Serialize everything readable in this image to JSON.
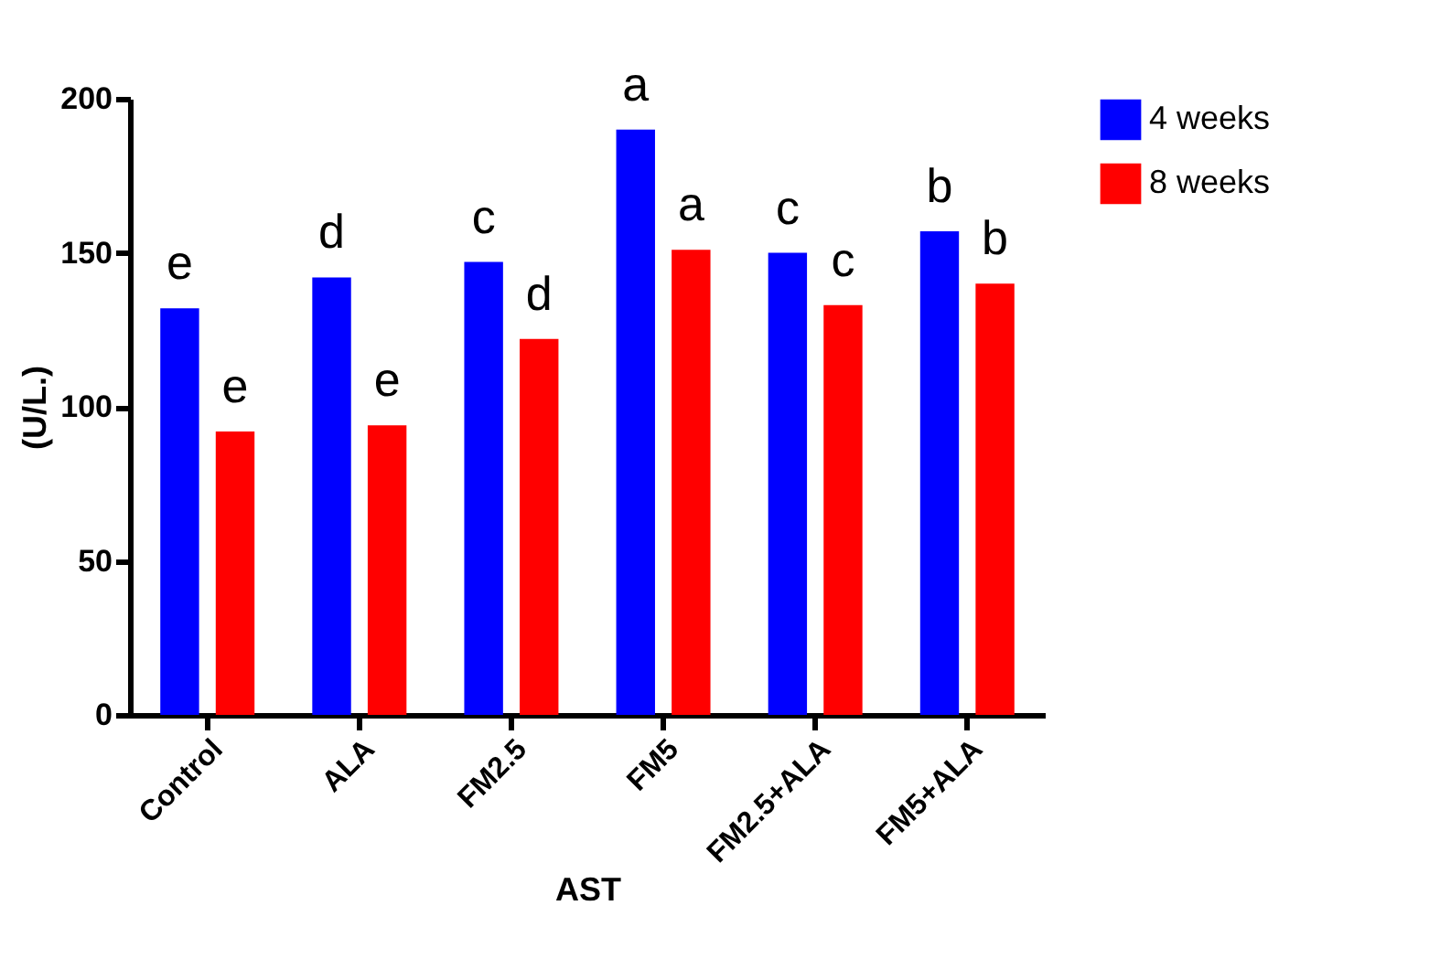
{
  "chart_data": {
    "type": "bar",
    "xlabel": "AST",
    "ylabel": "(U/L.)",
    "categories": [
      "Control",
      "ALA",
      "FM2.5",
      "FM5",
      "FM2.5+ALA",
      "FM5+ALA"
    ],
    "series": [
      {
        "name": "4 weeks",
        "color": "#0000ff",
        "values": [
          132,
          142,
          147,
          190,
          150,
          157
        ]
      },
      {
        "name": "8 weeks",
        "color": "#ff0000",
        "values": [
          92,
          94,
          122,
          151,
          133,
          140
        ]
      }
    ],
    "ylim": [
      0,
      200
    ],
    "yticks": [
      0,
      50,
      100,
      150,
      200
    ],
    "grid": false,
    "legend": "top right",
    "annotations": [
      {
        "text": "e",
        "x": "Control",
        "y": 132
      },
      {
        "text": "e",
        "x": "Control",
        "y": 92
      },
      {
        "text": "d",
        "x": "ALA",
        "y": 142
      },
      {
        "text": "e",
        "x": "ALA",
        "y": 94
      },
      {
        "text": "c",
        "x": "FM2.5",
        "y": 147
      },
      {
        "text": "d",
        "x": "FM2.5",
        "y": 122
      },
      {
        "text": "a",
        "x": "FM5",
        "y": 190
      },
      {
        "text": "a",
        "x": "FM5",
        "y": 151
      },
      {
        "text": "c",
        "x": "FM2.5+ALA",
        "y": 150
      },
      {
        "text": "c",
        "x": "FM2.5+ALA",
        "y": 133
      },
      {
        "text": "b",
        "x": "FM5+ALA",
        "y": 157
      },
      {
        "text": "b",
        "x": "FM5+ALA",
        "y": 140
      }
    ]
  }
}
